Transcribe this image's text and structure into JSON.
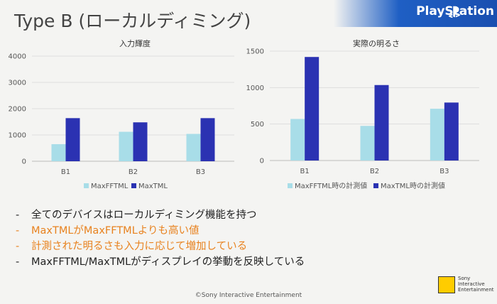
{
  "header": {
    "title": "Type B (ローカルディミング)",
    "brand": "PlayStation",
    "brand_color": "#1f5fc4"
  },
  "chart_data": [
    {
      "type": "bar",
      "title": "入力輝度",
      "categories": [
        "B1",
        "B2",
        "B3"
      ],
      "series": [
        {
          "name": "MaxFFTML",
          "values": [
            650,
            1120,
            1040
          ],
          "color": "#a8dde8"
        },
        {
          "name": "MaxTML",
          "values": [
            1640,
            1480,
            1640
          ],
          "color": "#2b32b2"
        }
      ],
      "ylim": [
        0,
        4000
      ],
      "yticks": [
        0,
        1000,
        2000,
        3000,
        4000
      ],
      "grid": true,
      "legend": "bottom"
    },
    {
      "type": "bar",
      "title": "実際の明るさ",
      "categories": [
        "B1",
        "B2",
        "B3"
      ],
      "series": [
        {
          "name": "MaxFFTML時の計測値",
          "values": [
            570,
            475,
            710
          ],
          "color": "#a8dde8"
        },
        {
          "name": "MaxTML時の計測値",
          "values": [
            1420,
            1035,
            795
          ],
          "color": "#2b32b2"
        }
      ],
      "ylim": [
        0,
        1500
      ],
      "yticks": [
        0,
        500,
        1000,
        1500
      ],
      "grid": true,
      "legend": "bottom"
    }
  ],
  "bullets": [
    {
      "dash": "-",
      "text": "全てのデバイスはローカルディミング機能を持つ",
      "color": "black"
    },
    {
      "dash": "-",
      "text": "MaxTMLがMaxFFTMLよりも高い値",
      "color": "orange"
    },
    {
      "dash": "-",
      "text": "計測された明るさも入力に応じて増加している",
      "color": "orange"
    },
    {
      "dash": "-",
      "text": "MaxFFTML/MaxTMLがディスプレイの挙動を反映している",
      "color": "black"
    }
  ],
  "footer": {
    "copyright": "©Sony Interactive Entertainment",
    "sie_line1": "Sony",
    "sie_line2": "Interactive",
    "sie_line3": "Entertainment"
  }
}
